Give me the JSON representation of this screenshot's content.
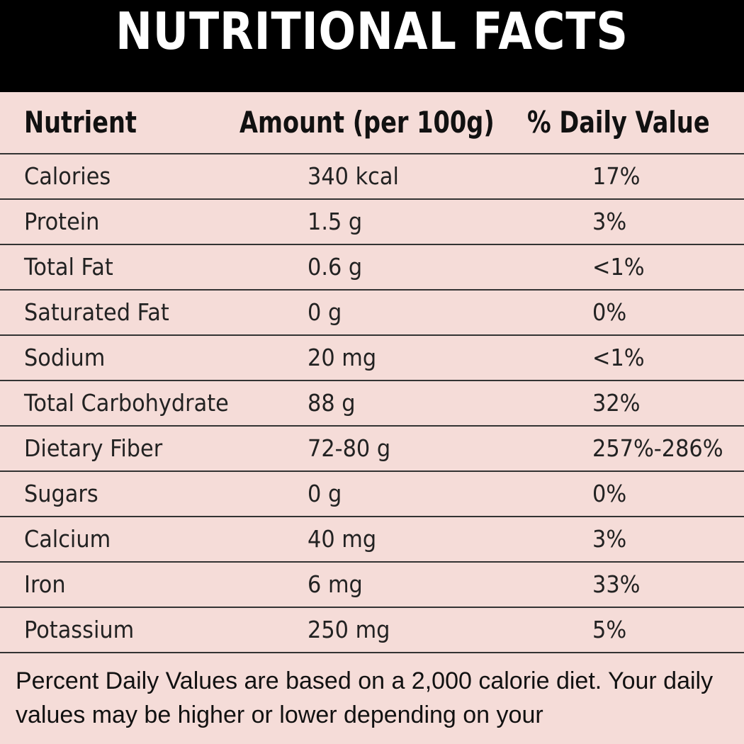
{
  "title": "NUTRITIONAL FACTS",
  "headers": {
    "nutrient": "Nutrient",
    "amount": "Amount (per 100g)",
    "daily_value": "% Daily Value"
  },
  "rows": [
    {
      "nutrient": "Calories",
      "amount": "340 kcal",
      "daily_value": "17%"
    },
    {
      "nutrient": "Protein",
      "amount": "1.5 g",
      "daily_value": "3%"
    },
    {
      "nutrient": "Total Fat",
      "amount": "0.6 g",
      "daily_value": "<1%"
    },
    {
      "nutrient": "Saturated Fat",
      "amount": "0 g",
      "daily_value": "0%"
    },
    {
      "nutrient": "Sodium",
      "amount": "20 mg",
      "daily_value": "<1%"
    },
    {
      "nutrient": "Total Carbohydrate",
      "amount": "88 g",
      "daily_value": "32%"
    },
    {
      "nutrient": "Dietary Fiber",
      "amount": "72-80 g",
      "daily_value": "257%-286%"
    },
    {
      "nutrient": "Sugars",
      "amount": "0 g",
      "daily_value": "0%"
    },
    {
      "nutrient": "Calcium",
      "amount": "40 mg",
      "daily_value": "3%"
    },
    {
      "nutrient": "Iron",
      "amount": "6 mg",
      "daily_value": "33%"
    },
    {
      "nutrient": "Potassium",
      "amount": "250 mg",
      "daily_value": "5%"
    }
  ],
  "footnote": "Percent Daily Values are based on a 2,000 calorie diet. Your daily values may be higher or lower depending on your",
  "colors": {
    "title_background": "#000000",
    "title_text": "#ffffff",
    "table_background": "#f5dcd8",
    "rule": "#333333"
  }
}
